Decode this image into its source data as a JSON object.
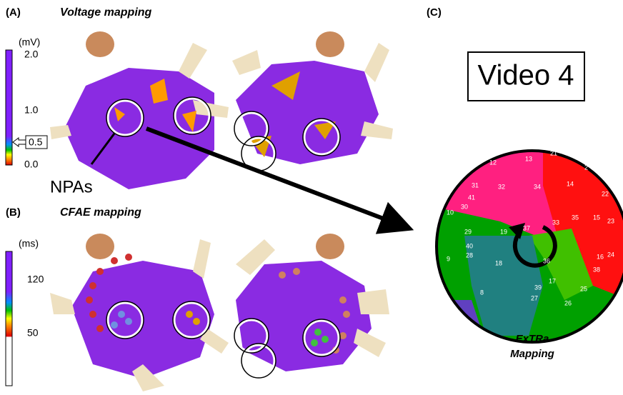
{
  "panel_a": {
    "label": "(A)",
    "title": "Voltage mapping",
    "unit": "(mV)",
    "ticks": [
      "2.0",
      "1.0",
      "0.5",
      "0.0"
    ],
    "annotation": "NPAs"
  },
  "panel_b": {
    "label": "(B)",
    "title": "CFAE mapping",
    "unit": "(ms)",
    "ticks": [
      "120",
      "50"
    ]
  },
  "panel_c": {
    "label": "(C)",
    "video": "Video 4",
    "caption_line1": "ExTRa",
    "caption_line2": "Mapping",
    "electrodes": [
      "20",
      "21",
      "12",
      "13",
      "2",
      "14",
      "22",
      "32",
      "34",
      "31",
      "41",
      "30",
      "33",
      "35",
      "15",
      "23",
      "10",
      "29",
      "19",
      "37",
      "36",
      "16",
      "24",
      "9",
      "40",
      "28",
      "18",
      "39",
      "17",
      "38",
      "25",
      "8",
      "27",
      "26"
    ]
  }
}
